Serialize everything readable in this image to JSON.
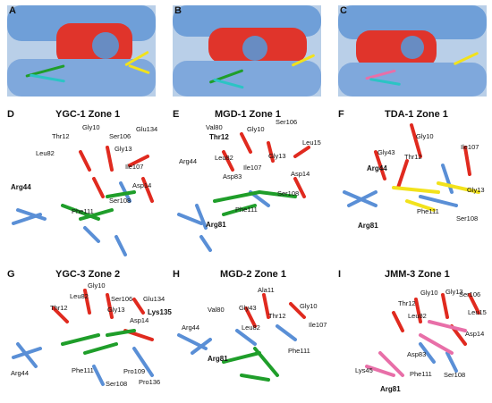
{
  "top_panels": [
    {
      "label": "A"
    },
    {
      "label": "B"
    },
    {
      "label": "C"
    }
  ],
  "panels": [
    {
      "label": "D",
      "title": "YGC-1 Zone 1",
      "residues": [
        "Gly10",
        "Ser106",
        "Glu134",
        "Thr12",
        "Leu82",
        "Gly13",
        "Arg44",
        "Ile107",
        "Asp14",
        "Phe111",
        "Ser108"
      ]
    },
    {
      "label": "E",
      "title": "MGD-1 Zone 1",
      "residues": [
        "Val80",
        "Gly10",
        "Ser106",
        "Thr12",
        "Leu15",
        "Arg44",
        "Leu82",
        "Gly13",
        "Ile107",
        "Asp83",
        "Asp14",
        "Ser108",
        "Phe111",
        "Arg81"
      ]
    },
    {
      "label": "F",
      "title": "TDA-1 Zone 1",
      "residues": [
        "Gly10",
        "Gly43",
        "Thr12",
        "Ile107",
        "Arg44",
        "Gly13",
        "Phe111",
        "Arg81",
        "Ser108"
      ]
    },
    {
      "label": "G",
      "title": "YGC-3 Zone 2",
      "residues": [
        "Gly10",
        "Ser106",
        "Glu134",
        "Leu82",
        "Thr12",
        "Gly13",
        "Lys135",
        "Asp14",
        "Arg44",
        "Phe111",
        "Pro109",
        "Pro136",
        "Ser108"
      ]
    },
    {
      "label": "H",
      "title": "MGD-2 Zone 1",
      "residues": [
        "Ala11",
        "Val80",
        "Gly43",
        "Gly10",
        "Thr12",
        "Ile107",
        "Arg44",
        "Leu82",
        "Phe111",
        "Arg81"
      ]
    },
    {
      "label": "I",
      "title": "JMM-3 Zone 1",
      "residues": [
        "Gly10",
        "Ser106",
        "Gly13",
        "Thr12",
        "Leu15",
        "Leu82",
        "Asp14",
        "Asp83",
        "Lys45",
        "Phe111",
        "Ser108",
        "Arg81"
      ]
    }
  ],
  "colors": {
    "surface_blue": "#6f9fd8",
    "surface_red": "#e0342b",
    "stick_red": "#e02a1f",
    "stick_blue": "#5a8fd6",
    "ligand_green": "#1f9e2a",
    "ligand_yellow": "#f2e21b",
    "ligand_pink": "#e86fa8",
    "ligand_cyan": "#2bc4c4"
  }
}
